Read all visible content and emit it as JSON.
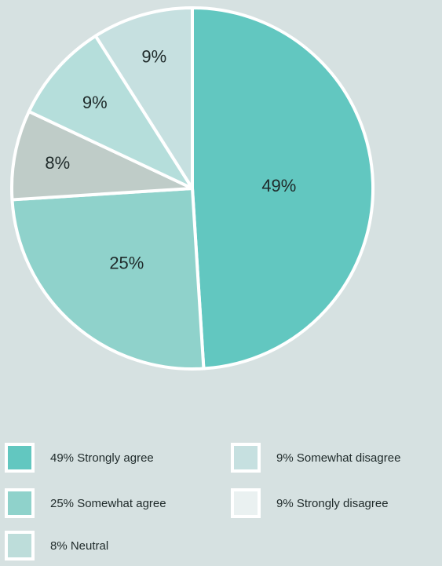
{
  "chart_data": {
    "type": "pie",
    "title": "",
    "categories": [
      "Strongly agree",
      "Somewhat agree",
      "Neutral",
      "Somewhat disagree",
      "Strongly disagree"
    ],
    "values": [
      49,
      25,
      8,
      9,
      9
    ],
    "slice_labels": [
      "49%",
      "25%",
      "8%",
      "9%",
      "9%"
    ],
    "colors": [
      "#62c7c0",
      "#8fd2cb",
      "#bfccc8",
      "#b5dedb",
      "#c6e0e0"
    ],
    "legend": {
      "placement": "bottom",
      "entries": [
        {
          "label": "49% Strongly agree",
          "color": "#62c7c0"
        },
        {
          "label": "25% Somewhat agree",
          "color": "#8fd2cb"
        },
        {
          "label": "8% Neutral",
          "color": "#bdddda"
        },
        {
          "label": "9% Somewhat disagree",
          "color": "#c6e0e0"
        },
        {
          "label": "9% Strongly disagree",
          "color": "#eaf1f1"
        }
      ]
    }
  }
}
